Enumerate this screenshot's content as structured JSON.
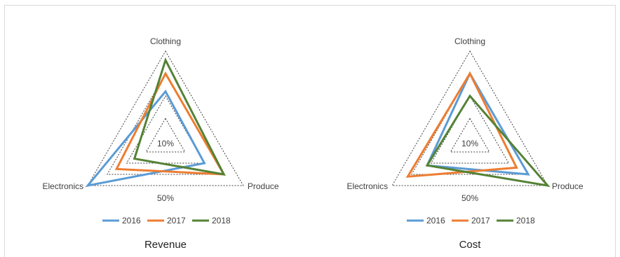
{
  "chart_data": [
    {
      "type": "radar",
      "title": "Revenue",
      "categories": [
        "Clothing",
        "Produce",
        "Electronics"
      ],
      "tick_labels": [
        "10%",
        "50%"
      ],
      "grid": true,
      "grid_levels": 4,
      "max": 1.0,
      "legend": "bottom",
      "series": [
        {
          "name": "2016",
          "values": [
            0.55,
            0.5,
            1.0
          ]
        },
        {
          "name": "2017",
          "values": [
            0.75,
            0.75,
            0.63
          ]
        },
        {
          "name": "2018",
          "values": [
            0.9,
            0.75,
            0.4
          ]
        }
      ]
    },
    {
      "type": "radar",
      "title": "Cost",
      "categories": [
        "Clothing",
        "Produce",
        "Electronics"
      ],
      "tick_labels": [
        "10%",
        "50%"
      ],
      "grid": true,
      "grid_levels": 4,
      "max": 1.0,
      "legend": "bottom",
      "series": [
        {
          "name": "2016",
          "values": [
            0.75,
            0.75,
            0.55
          ]
        },
        {
          "name": "2017",
          "values": [
            0.75,
            0.6,
            0.8
          ]
        },
        {
          "name": "2018",
          "values": [
            0.5,
            1.0,
            0.55
          ]
        }
      ]
    }
  ],
  "colors": {
    "2016": "#5b9bd5",
    "2017": "#ed7d31",
    "2018": "#548235",
    "grid": "#404040"
  }
}
